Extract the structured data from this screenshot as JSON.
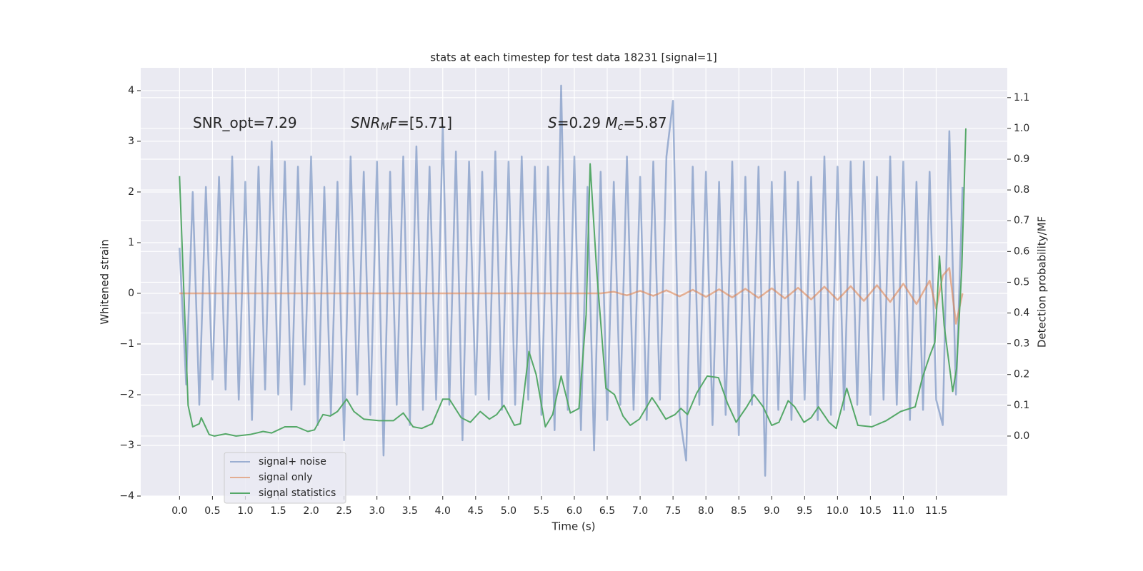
{
  "chart_data": {
    "type": "line",
    "title": "stats at each timestep for test data 18231 [signal=1]",
    "xlabel": "Time (s)",
    "ylabel": "Whitened strain",
    "y2label": "Detection probability/MF",
    "annotations": [
      [
        {
          "text": "SNR_opt=7.29"
        }
      ],
      [
        {
          "text": "SNR",
          "italic": true
        },
        {
          "text": "M",
          "italic": true,
          "sub": true
        },
        {
          "text": "F",
          "italic": true
        },
        {
          "text": "=[5.71]"
        }
      ],
      [
        {
          "text": "S",
          "italic": true
        },
        {
          "text": "=0.29"
        },
        {
          "text": "   "
        },
        {
          "text": "M",
          "italic": true
        },
        {
          "text": "c",
          "italic": true,
          "sub": true
        },
        {
          "text": "=5.87"
        }
      ]
    ],
    "xlim": [
      -0.59,
      12.58
    ],
    "ylim": [
      -4,
      4.45
    ],
    "y2lim": [
      -0.195,
      1.197
    ],
    "xticks": [
      {
        "value": 0,
        "label": "0.0"
      },
      0.5,
      {
        "value": 1,
        "label": "1.0"
      },
      1.5,
      {
        "value": 2,
        "label": "2.0"
      },
      2.5,
      {
        "value": 3,
        "label": "3.0"
      },
      3.5,
      {
        "value": 4,
        "label": "4.0"
      },
      4.5,
      {
        "value": 5,
        "label": "5.0"
      },
      5.5,
      {
        "value": 6,
        "label": "6.0"
      },
      6.5,
      {
        "value": 7,
        "label": "7.0"
      },
      7.5,
      {
        "value": 8,
        "label": "8.0"
      },
      8.5,
      {
        "value": 9,
        "label": "9.0"
      },
      9.5,
      {
        "value": 10,
        "label": "10.0"
      },
      10.5,
      {
        "value": 11,
        "label": "11.0"
      },
      11.5
    ],
    "yticks": [
      {
        "value": -4,
        "label": "−4"
      },
      {
        "value": -3,
        "label": "−3"
      },
      {
        "value": -2,
        "label": "−2"
      },
      {
        "value": -1,
        "label": "−1"
      },
      0,
      1,
      2,
      3,
      4
    ],
    "y2ticks": [
      {
        "value": 0,
        "label": "0.0"
      },
      0.1,
      0.2,
      0.3,
      0.4,
      0.5,
      0.6,
      0.7,
      0.8,
      0.9,
      {
        "value": 1,
        "label": "1.0"
      },
      1.1
    ],
    "grid": true,
    "legend": "lower left",
    "series": [
      {
        "name": "signal+ noise",
        "color": "#4c72b0",
        "opacity": 0.5,
        "x": [
          0,
          0.1,
          0.2,
          0.3,
          0.4,
          0.5,
          0.6,
          0.7,
          0.8,
          0.9,
          1,
          1.1,
          1.2,
          1.3,
          1.4,
          1.5,
          1.6,
          1.7,
          1.8,
          1.9,
          2,
          2.1,
          2.2,
          2.3,
          2.4,
          2.5,
          2.6,
          2.7,
          2.8,
          2.9,
          3,
          3.1,
          3.2,
          3.3,
          3.4,
          3.5,
          3.6,
          3.7,
          3.8,
          3.9,
          4,
          4.1,
          4.2,
          4.3,
          4.4,
          4.5,
          4.6,
          4.7,
          4.8,
          4.9,
          5,
          5.1,
          5.2,
          5.3,
          5.4,
          5.5,
          5.6,
          5.7,
          5.8,
          5.9,
          6,
          6.1,
          6.2,
          6.3,
          6.4,
          6.5,
          6.6,
          6.7,
          6.8,
          6.9,
          7,
          7.1,
          7.2,
          7.3,
          7.4,
          7.5,
          7.6,
          7.7,
          7.8,
          7.9,
          8,
          8.1,
          8.2,
          8.3,
          8.4,
          8.5,
          8.6,
          8.7,
          8.8,
          8.9,
          9,
          9.1,
          9.2,
          9.3,
          9.4,
          9.5,
          9.6,
          9.7,
          9.8,
          9.9,
          10,
          10.1,
          10.2,
          10.3,
          10.4,
          10.5,
          10.6,
          10.7,
          10.8,
          10.9,
          11,
          11.1,
          11.2,
          11.3,
          11.4,
          11.5,
          11.6,
          11.7,
          11.8,
          11.9
        ],
        "values": [
          0.9,
          -1.8,
          2.0,
          -2.2,
          2.1,
          -1.7,
          2.3,
          -1.9,
          2.7,
          -2.1,
          2.2,
          -2.5,
          2.5,
          -1.9,
          3.0,
          -2.0,
          2.6,
          -2.3,
          2.5,
          -1.8,
          2.7,
          -2.6,
          2.1,
          -2.4,
          2.2,
          -2.9,
          2.7,
          -2.0,
          2.4,
          -2.4,
          2.6,
          -3.2,
          2.4,
          -2.2,
          2.7,
          -2.6,
          2.9,
          -2.3,
          2.5,
          -2.1,
          3.3,
          -2.2,
          2.8,
          -2.9,
          2.6,
          -2.0,
          2.4,
          -2.1,
          2.8,
          -2.3,
          2.6,
          -2.2,
          2.7,
          -2.1,
          2.5,
          -2.4,
          2.5,
          -2.7,
          4.1,
          -2.3,
          2.7,
          -2.7,
          2.1,
          -3.1,
          2.4,
          -2.5,
          2.2,
          -2.2,
          2.7,
          -2.3,
          2.3,
          -2.5,
          2.6,
          -2.1,
          2.7,
          3.8,
          -2.4,
          -3.3,
          2.5,
          -2.2,
          2.4,
          -2.6,
          2.2,
          -2.4,
          2.6,
          -2.8,
          2.3,
          -2.2,
          2.5,
          -3.6,
          2.2,
          -2.3,
          2.4,
          -2.5,
          2.2,
          -2.1,
          2.3,
          -2.5,
          2.7,
          -2.4,
          2.5,
          -2.3,
          2.6,
          -2.2,
          2.6,
          -2.4,
          2.3,
          -2.1,
          2.7,
          -2.2,
          2.6,
          -2.5,
          2.2,
          -2.3,
          2.4,
          -2.1,
          -2.6,
          3.2,
          -2.0,
          2.1
        ]
      },
      {
        "name": "signal only",
        "color": "#dd8452",
        "opacity": 0.6,
        "x": [
          0,
          6.4,
          6.6,
          6.8,
          7,
          7.2,
          7.4,
          7.6,
          7.8,
          8,
          8.2,
          8.4,
          8.6,
          8.8,
          9,
          9.2,
          9.4,
          9.6,
          9.8,
          10,
          10.2,
          10.4,
          10.6,
          10.8,
          11,
          11.2,
          11.4,
          11.5,
          11.6,
          11.7,
          11.8,
          11.9
        ],
        "values": [
          0,
          0,
          0.03,
          -0.04,
          0.05,
          -0.05,
          0.06,
          -0.06,
          0.07,
          -0.07,
          0.08,
          -0.08,
          0.09,
          -0.09,
          0.1,
          -0.1,
          0.11,
          -0.12,
          0.13,
          -0.13,
          0.14,
          -0.15,
          0.16,
          -0.17,
          0.19,
          -0.21,
          0.25,
          -0.3,
          0.35,
          0.5,
          -0.6,
          0
        ]
      },
      {
        "name": "signal statistics",
        "color": "#55a868",
        "opacity": 1,
        "axis": "y2",
        "x": [
          0,
          0.13,
          0.2,
          0.3,
          0.33,
          0.45,
          0.53,
          0.7,
          0.86,
          1.07,
          1.27,
          1.4,
          1.6,
          1.78,
          1.95,
          2.05,
          2.18,
          2.29,
          2.4,
          2.54,
          2.65,
          2.8,
          3.03,
          3.25,
          3.4,
          3.55,
          3.68,
          3.84,
          4,
          4.1,
          4.28,
          4.42,
          4.57,
          4.71,
          4.82,
          4.93,
          5.09,
          5.18,
          5.31,
          5.42,
          5.56,
          5.67,
          5.8,
          5.94,
          6.07,
          6.18,
          6.24,
          6.34,
          6.48,
          6.61,
          6.74,
          6.85,
          6.99,
          7.1,
          7.18,
          7.26,
          7.39,
          7.53,
          7.62,
          7.72,
          7.86,
          8.02,
          8.19,
          8.33,
          8.46,
          8.62,
          8.73,
          8.87,
          9,
          9.11,
          9.25,
          9.35,
          9.49,
          9.6,
          9.71,
          9.87,
          9.98,
          10.14,
          10.31,
          10.52,
          10.74,
          10.96,
          11.18,
          11.29,
          11.4,
          11.48,
          11.55,
          11.62,
          11.75,
          11.81,
          11.89,
          11.95
        ],
        "values": [
          0.845,
          0.1,
          0.03,
          0.04,
          0.06,
          0.005,
          0,
          0.007,
          0,
          0.005,
          0.015,
          0.01,
          0.03,
          0.03,
          0.015,
          0.02,
          0.07,
          0.065,
          0.08,
          0.12,
          0.08,
          0.055,
          0.05,
          0.05,
          0.075,
          0.03,
          0.025,
          0.04,
          0.12,
          0.12,
          0.06,
          0.045,
          0.08,
          0.055,
          0.07,
          0.1,
          0.035,
          0.04,
          0.275,
          0.2,
          0.03,
          0.07,
          0.195,
          0.075,
          0.09,
          0.395,
          0.885,
          0.535,
          0.155,
          0.135,
          0.065,
          0.035,
          0.055,
          0.095,
          0.125,
          0.1,
          0.055,
          0.07,
          0.09,
          0.07,
          0.14,
          0.195,
          0.19,
          0.105,
          0.045,
          0.095,
          0.135,
          0.095,
          0.035,
          0.045,
          0.115,
          0.095,
          0.045,
          0.06,
          0.095,
          0.045,
          0.025,
          0.155,
          0.035,
          0.03,
          0.05,
          0.08,
          0.095,
          0.19,
          0.26,
          0.305,
          0.585,
          0.36,
          0.145,
          0.22,
          0.55,
          1.0
        ]
      }
    ]
  }
}
